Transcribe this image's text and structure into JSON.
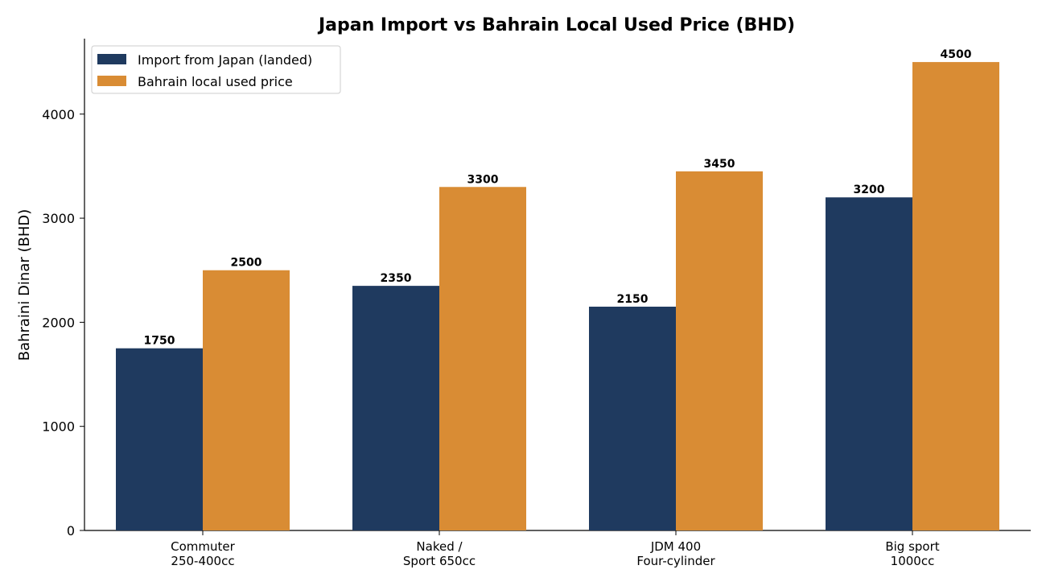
{
  "chart_data": {
    "type": "bar",
    "title": "Japan Import vs Bahrain Local Used Price (BHD)",
    "xlabel": "",
    "ylabel": "Bahraini Dinar (BHD)",
    "ylim": [
      0,
      4725
    ],
    "yticks": [
      0,
      1000,
      2000,
      3000,
      4000
    ],
    "grid": false,
    "legend_position": "top-left",
    "categories": [
      [
        "Commuter",
        "250-400cc"
      ],
      [
        "Naked /",
        "Sport 650cc"
      ],
      [
        "JDM 400",
        "Four-cylinder"
      ],
      [
        "Big sport",
        "1000cc"
      ]
    ],
    "series": [
      {
        "name": "Import from Japan (landed)",
        "color": "#1f3a5f",
        "values": [
          1750,
          2350,
          2150,
          3200
        ]
      },
      {
        "name": "Bahrain local used price",
        "color": "#d98c34",
        "values": [
          2500,
          3300,
          3450,
          4500
        ]
      }
    ]
  }
}
